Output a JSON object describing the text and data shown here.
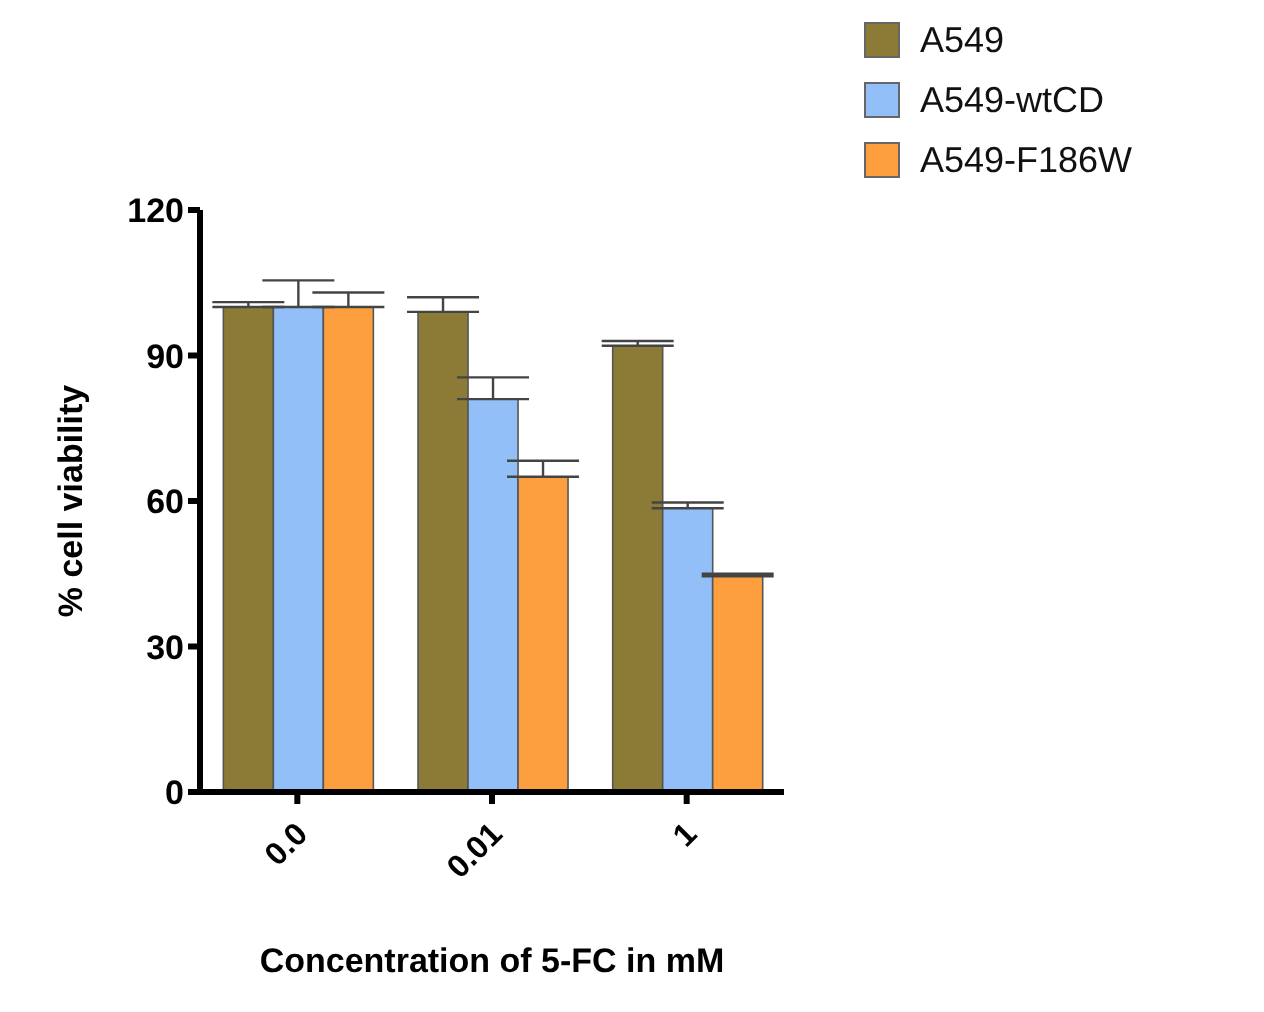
{
  "chart_data": {
    "type": "bar",
    "xlabel": "Concentration of 5-FC in mM",
    "ylabel": "% cell viability",
    "categories": [
      "0.0",
      "0.01",
      "1"
    ],
    "series": [
      {
        "name": "A549",
        "color": "#8b7b37",
        "values": [
          100,
          99,
          92
        ],
        "errors": [
          [
            100,
            101
          ],
          [
            99,
            102
          ],
          [
            92,
            93
          ]
        ]
      },
      {
        "name": "A549-wtCD",
        "color": "#92bff8",
        "values": [
          100,
          81,
          58.5
        ],
        "errors": [
          [
            100,
            105.5
          ],
          [
            81,
            85.5
          ],
          [
            58.5,
            59.7
          ]
        ]
      },
      {
        "name": "A549-F186W",
        "color": "#fd9f3e",
        "values": [
          100,
          65,
          44.5
        ],
        "errors": [
          [
            100,
            103
          ],
          [
            65,
            68.3
          ],
          [
            44.5,
            45
          ]
        ]
      }
    ],
    "ylim": [
      0,
      120
    ],
    "yticks": [
      0,
      30,
      60,
      90,
      120
    ],
    "grid": false,
    "legend": "top right"
  }
}
